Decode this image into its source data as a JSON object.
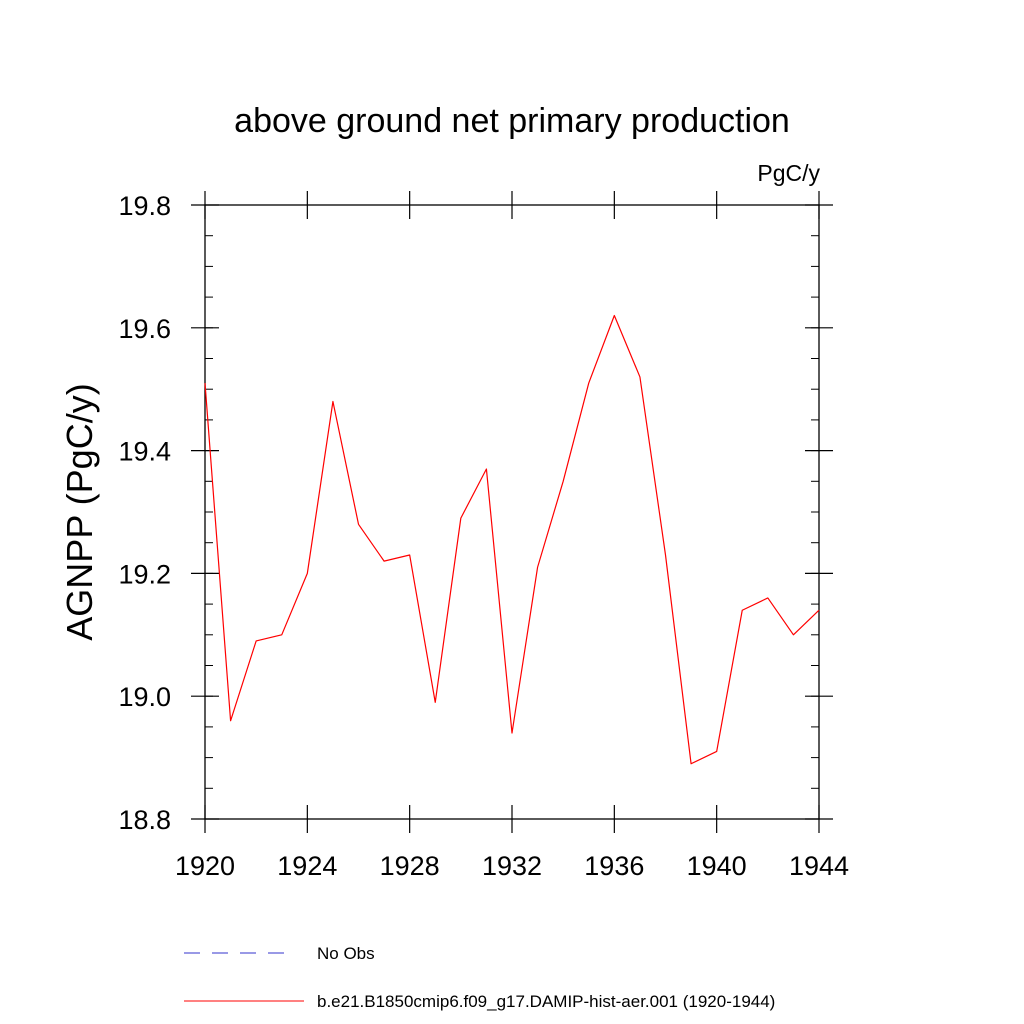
{
  "chart_data": {
    "type": "line",
    "title": "above ground net primary production",
    "units_label": "PgC/y",
    "ylabel": "AGNPP  (PgC/y)",
    "xlabel": "",
    "xlim": [
      1920,
      1944
    ],
    "ylim": [
      18.8,
      19.8
    ],
    "x_ticks": [
      "1920",
      "1924",
      "1928",
      "1932",
      "1936",
      "1940",
      "1944"
    ],
    "y_ticks": [
      "18.8",
      "19.0",
      "19.2",
      "19.4",
      "19.6",
      "19.8"
    ],
    "grid": false,
    "legend_position": "bottom",
    "series": [
      {
        "name": "b.e21.B1850cmip6.f09_g17.DAMIP-hist-aer.001 (1920-1944)",
        "color": "#ff0000",
        "style": "solid",
        "x": [
          1920,
          1921,
          1922,
          1923,
          1924,
          1925,
          1926,
          1927,
          1928,
          1929,
          1930,
          1931,
          1932,
          1933,
          1934,
          1935,
          1936,
          1937,
          1938,
          1939,
          1940,
          1941,
          1942,
          1943,
          1944
        ],
        "y": [
          19.51,
          18.96,
          19.09,
          19.1,
          19.2,
          19.48,
          19.28,
          19.22,
          19.23,
          18.99,
          19.29,
          19.37,
          18.94,
          19.21,
          19.35,
          19.51,
          19.62,
          19.52,
          19.23,
          18.89,
          18.91,
          19.14,
          19.16,
          19.1,
          19.14
        ]
      }
    ],
    "legend": [
      {
        "label": "No Obs",
        "color": "#3333cc",
        "style": "dashed"
      },
      {
        "label": "b.e21.B1850cmip6.f09_g17.DAMIP-hist-aer.001 (1920-1944)",
        "color": "#ff0000",
        "style": "solid"
      }
    ]
  }
}
